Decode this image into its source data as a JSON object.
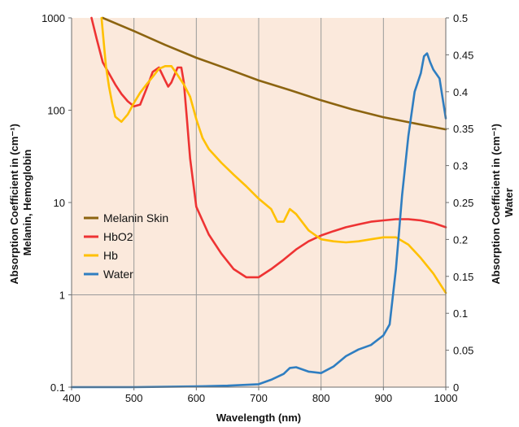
{
  "chart_data": {
    "type": "line",
    "x_label": "Wavelength (nm)",
    "y_left_label_line1": "Absorption Coefficient in (cm⁻¹)",
    "y_left_label_line2": "Melanin, Hemoglobin",
    "y_right_label_line1": "Absorption Coefficient in (cm⁻¹)",
    "y_right_label_line2": "Water",
    "x_range": [
      400,
      1000
    ],
    "x_ticks": [
      "400",
      "500",
      "600",
      "700",
      "800",
      "900",
      "1000"
    ],
    "y_left_scale": "log",
    "y_left_range": [
      0.1,
      1000
    ],
    "y_left_ticks": [
      "0.1",
      "1",
      "10",
      "100",
      "1000"
    ],
    "y_right_scale": "linear",
    "y_right_range": [
      0,
      0.5
    ],
    "y_right_ticks": [
      "0",
      "0.05",
      "0.1",
      "0.15",
      "0.2",
      "0.25",
      "0.3",
      "0.35",
      "0.4",
      "0.45",
      "0.5"
    ],
    "grid": "vertical",
    "background_color": "#fbe9dc",
    "legend_position": "center-left",
    "series": [
      {
        "name": "Melanin Skin",
        "axis": "left",
        "color": "#8c6410",
        "x": [
          450,
          500,
          550,
          600,
          650,
          700,
          750,
          800,
          850,
          900,
          950,
          1000
        ],
        "y": [
          1000,
          720,
          510,
          370,
          280,
          210,
          165,
          128,
          102,
          84,
          72,
          62
        ]
      },
      {
        "name": "HbO2",
        "axis": "left",
        "color": "#ee3333",
        "x": [
          432,
          440,
          450,
          460,
          470,
          480,
          490,
          500,
          510,
          520,
          530,
          540,
          550,
          555,
          560,
          570,
          576,
          580,
          585,
          590,
          600,
          620,
          640,
          660,
          680,
          700,
          720,
          740,
          760,
          780,
          800,
          820,
          840,
          860,
          880,
          900,
          920,
          940,
          960,
          980,
          1000
        ],
        "y": [
          1000,
          600,
          330,
          250,
          190,
          150,
          125,
          110,
          115,
          170,
          260,
          290,
          210,
          180,
          200,
          290,
          290,
          200,
          80,
          30,
          9,
          4.5,
          2.8,
          1.9,
          1.55,
          1.55,
          1.9,
          2.4,
          3.1,
          3.8,
          4.4,
          4.9,
          5.4,
          5.8,
          6.2,
          6.4,
          6.6,
          6.6,
          6.4,
          6.0,
          5.4
        ]
      },
      {
        "name": "Hb",
        "axis": "left",
        "color": "#ffc000",
        "x": [
          448,
          455,
          460,
          465,
          470,
          480,
          490,
          500,
          510,
          520,
          530,
          540,
          550,
          560,
          570,
          580,
          590,
          600,
          610,
          620,
          640,
          660,
          680,
          700,
          720,
          730,
          740,
          750,
          760,
          780,
          800,
          820,
          840,
          860,
          880,
          900,
          920,
          940,
          960,
          980,
          1000
        ],
        "y": [
          1000,
          300,
          180,
          120,
          85,
          75,
          90,
          120,
          155,
          190,
          230,
          280,
          300,
          300,
          240,
          190,
          140,
          80,
          50,
          38,
          27,
          20,
          15,
          11,
          8.5,
          6.2,
          6.2,
          8.5,
          7.5,
          5.0,
          4.0,
          3.8,
          3.7,
          3.8,
          4.0,
          4.2,
          4.2,
          3.5,
          2.5,
          1.7,
          1.05
        ]
      },
      {
        "name": "Water",
        "axis": "right",
        "color": "#2f7ec1",
        "x": [
          400,
          500,
          600,
          650,
          700,
          720,
          740,
          750,
          760,
          780,
          800,
          820,
          840,
          860,
          880,
          900,
          910,
          920,
          930,
          940,
          950,
          960,
          965,
          970,
          975,
          980,
          990,
          1000
        ],
        "y": [
          0,
          0,
          0.001,
          0.002,
          0.004,
          0.01,
          0.018,
          0.026,
          0.027,
          0.021,
          0.019,
          0.028,
          0.042,
          0.051,
          0.057,
          0.07,
          0.085,
          0.16,
          0.26,
          0.34,
          0.4,
          0.425,
          0.448,
          0.452,
          0.44,
          0.43,
          0.418,
          0.364
        ]
      }
    ]
  }
}
